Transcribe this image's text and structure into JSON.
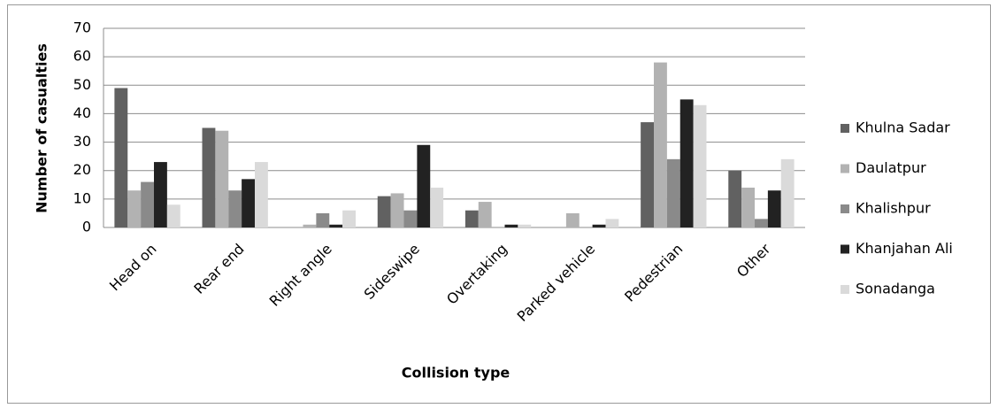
{
  "chart_data": {
    "type": "bar",
    "x_label": "Collision type",
    "y_label": "Number of casualties",
    "categories": [
      "Head on",
      "Rear end",
      "Right angle",
      "Sideswipe",
      "Overtaking",
      "Parked vehicle",
      "Pedestrian",
      "Other"
    ],
    "series": [
      {
        "name": "Khulna Sadar",
        "color": "#616161",
        "values": [
          49,
          35,
          0,
          11,
          6,
          0,
          37,
          20
        ]
      },
      {
        "name": "Daulatpur",
        "color": "#b2b2b2",
        "values": [
          13,
          34,
          1,
          12,
          9,
          5,
          58,
          14
        ]
      },
      {
        "name": "Khalishpur",
        "color": "#8a8a8a",
        "values": [
          16,
          13,
          5,
          6,
          0,
          0,
          24,
          3
        ]
      },
      {
        "name": "Khanjahan Ali",
        "color": "#222222",
        "values": [
          23,
          17,
          1,
          29,
          1,
          1,
          45,
          13
        ]
      },
      {
        "name": "Sonadanga",
        "color": "#dadada",
        "values": [
          8,
          23,
          6,
          14,
          1,
          3,
          43,
          24
        ]
      }
    ],
    "ylim": [
      0,
      70
    ],
    "yticks": [
      0,
      10,
      20,
      30,
      40,
      50,
      60,
      70
    ],
    "grid": true,
    "legend": "right"
  }
}
